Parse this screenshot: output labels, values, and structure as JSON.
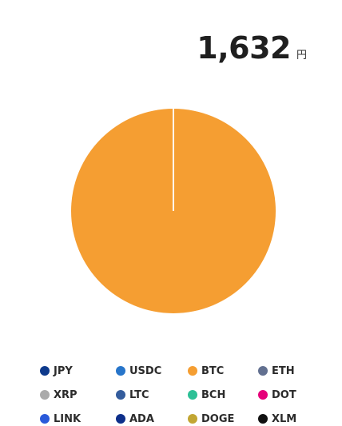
{
  "total": {
    "amount": "1,632",
    "unit": "円"
  },
  "chart_data": {
    "type": "pie",
    "slices": [
      {
        "name": "BTC",
        "value": 100,
        "color": "#f59e32"
      }
    ]
  },
  "legend": {
    "items": [
      {
        "label": "JPY",
        "color": "#0e3a8c"
      },
      {
        "label": "USDC",
        "color": "#2775ca"
      },
      {
        "label": "BTC",
        "color": "#f59e32"
      },
      {
        "label": "ETH",
        "color": "#627090"
      },
      {
        "label": "XRP",
        "color": "#aaaaaa"
      },
      {
        "label": "LTC",
        "color": "#345d9d"
      },
      {
        "label": "BCH",
        "color": "#2dc096"
      },
      {
        "label": "DOT",
        "color": "#e6007a"
      },
      {
        "label": "LINK",
        "color": "#2a5ada"
      },
      {
        "label": "ADA",
        "color": "#0d2f8a"
      },
      {
        "label": "DOGE",
        "color": "#c2a633"
      },
      {
        "label": "XLM",
        "color": "#111111"
      }
    ]
  }
}
